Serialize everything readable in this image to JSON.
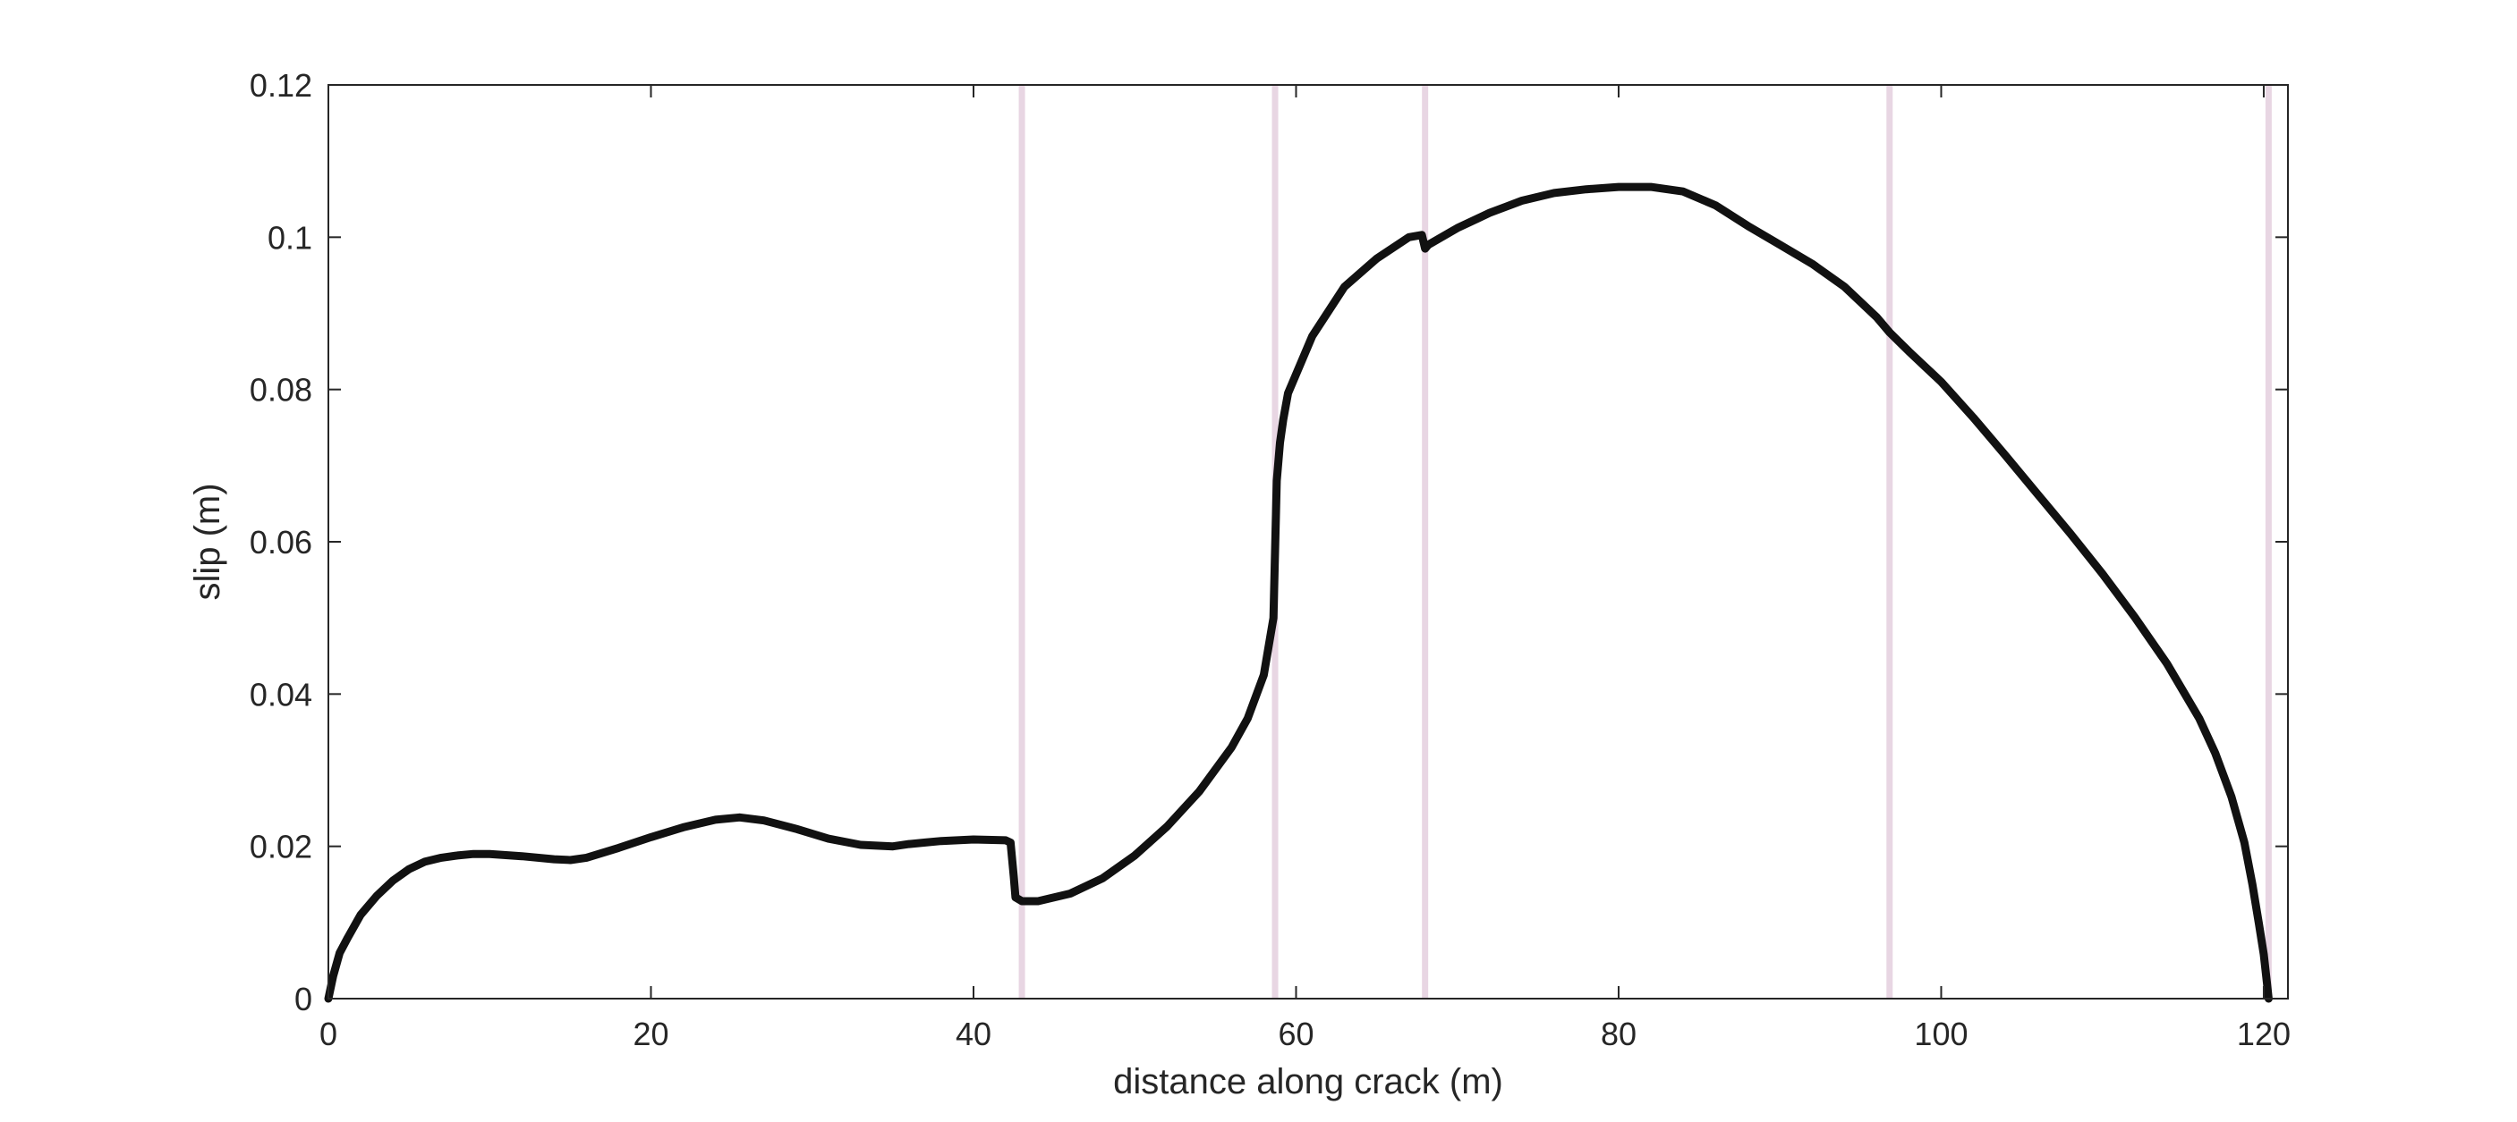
{
  "chart_data": {
    "type": "line",
    "title": "",
    "xlabel": "distance along crack (m)",
    "ylabel": "slip (m)",
    "xlim": [
      0,
      121.5
    ],
    "ylim": [
      0,
      0.12
    ],
    "x_ticks": [
      0,
      20,
      40,
      60,
      80,
      100,
      120
    ],
    "y_ticks": [
      0,
      0.02,
      0.04,
      0.06,
      0.08,
      0.1,
      0.12
    ],
    "x_tick_labels": [
      "0",
      "20",
      "40",
      "60",
      "80",
      "100",
      "120"
    ],
    "y_tick_labels": [
      "0",
      "0.02",
      "0.04",
      "0.06",
      "0.08",
      "0.1",
      "0.12"
    ],
    "grid": false,
    "legend": "none",
    "vertical_lines": [
      43,
      58.7,
      68,
      96.8,
      120.3
    ],
    "series": [
      {
        "color": "#111111",
        "x": [
          0,
          0.3,
          0.7,
          1.2,
          2,
          3,
          4,
          5,
          6,
          7,
          8,
          9,
          10,
          12,
          14,
          15,
          16,
          18,
          20,
          22,
          24,
          25.5,
          27,
          29,
          31,
          33,
          35,
          36,
          37,
          38,
          40,
          42,
          42.3,
          42.5,
          42.6,
          43,
          44,
          46,
          48,
          50,
          52,
          54,
          56,
          57,
          58,
          58.6,
          58.8,
          59,
          59.2,
          59.5,
          61,
          63,
          65,
          67,
          67.8,
          68,
          68.2,
          70,
          72,
          73,
          74,
          76,
          78,
          80,
          82,
          84,
          86,
          88,
          90,
          92,
          94,
          96,
          96.8,
          98,
          100,
          102,
          104,
          106,
          108,
          110,
          112,
          114,
          116,
          117,
          118,
          118.8,
          119.3,
          119.7,
          120,
          120.2,
          120.3
        ],
        "y": [
          0,
          0.003,
          0.006,
          0.008,
          0.011,
          0.0135,
          0.0155,
          0.017,
          0.018,
          0.0185,
          0.0188,
          0.019,
          0.019,
          0.0187,
          0.0183,
          0.0182,
          0.0185,
          0.0198,
          0.0212,
          0.0225,
          0.0235,
          0.0238,
          0.0234,
          0.0223,
          0.021,
          0.0202,
          0.02,
          0.0203,
          0.0205,
          0.0207,
          0.0209,
          0.0208,
          0.0205,
          0.016,
          0.0133,
          0.0128,
          0.0128,
          0.0138,
          0.0158,
          0.0188,
          0.0226,
          0.0272,
          0.033,
          0.0368,
          0.0425,
          0.05,
          0.068,
          0.073,
          0.076,
          0.0795,
          0.087,
          0.0935,
          0.0972,
          0.1,
          0.1003,
          0.0985,
          0.099,
          0.1012,
          0.1032,
          0.104,
          0.1048,
          0.1058,
          0.1063,
          0.1066,
          0.1066,
          0.106,
          0.1042,
          0.1015,
          0.099,
          0.0965,
          0.0935,
          0.0895,
          0.0875,
          0.085,
          0.081,
          0.0763,
          0.0713,
          0.0662,
          0.0611,
          0.0558,
          0.0501,
          0.044,
          0.0368,
          0.0322,
          0.0265,
          0.0205,
          0.015,
          0.0098,
          0.0058,
          0.002,
          0
        ]
      }
    ]
  }
}
